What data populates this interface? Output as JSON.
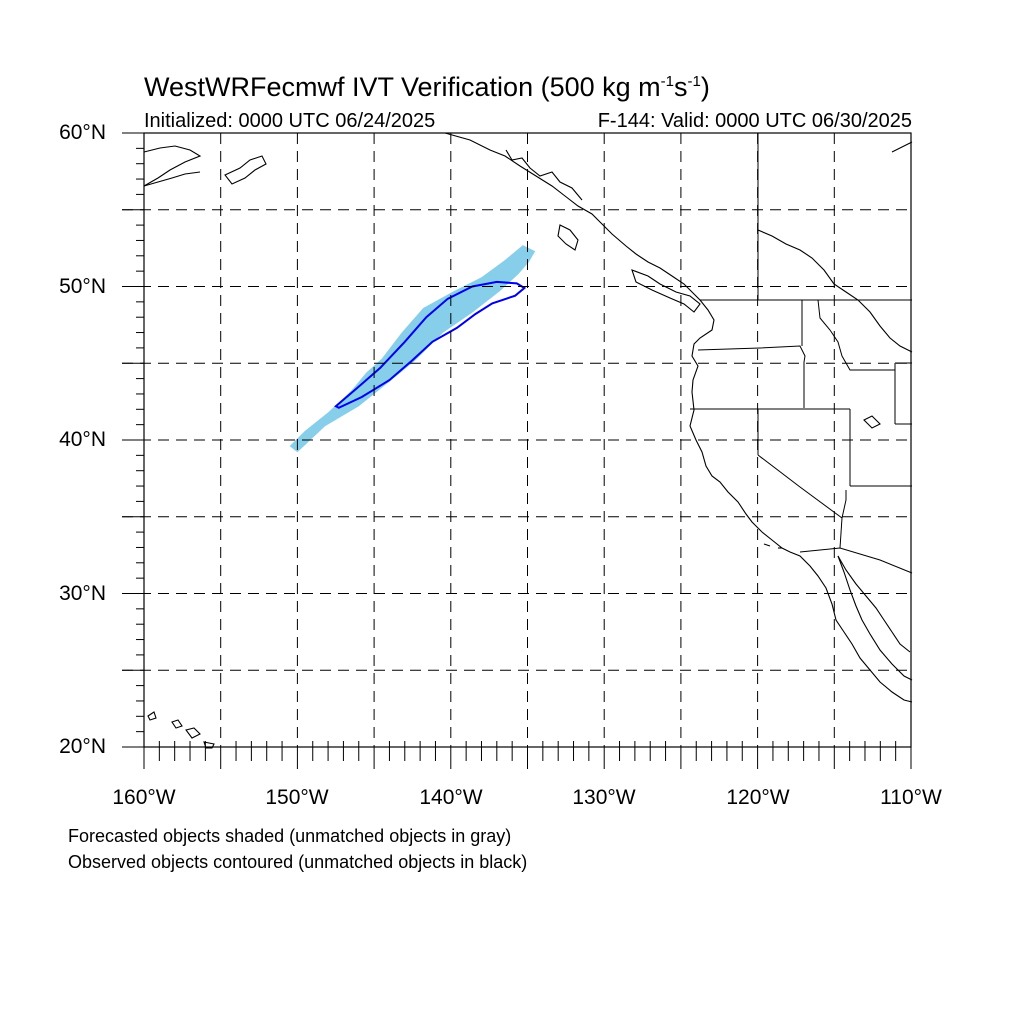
{
  "title": {
    "main": "WestWRFecmwf IVT Verification (500 kg m",
    "sup1": "-1",
    "mid": "s",
    "sup2": "-1",
    "end": ")"
  },
  "initialized": "Initialized: 0000 UTC 06/24/2025",
  "valid": "F-144: Valid: 0000 UTC 06/30/2025",
  "lat_labels": [
    "60°N",
    "50°N",
    "40°N",
    "30°N",
    "20°N"
  ],
  "lon_labels": [
    "160°W",
    "150°W",
    "140°W",
    "130°W",
    "120°W",
    "110°W"
  ],
  "notes": [
    "Forecasted objects shaded (unmatched objects in gray)",
    "Observed objects contoured (unmatched objects in black)"
  ],
  "colors": {
    "forecast_fill": "#87ceeb",
    "observed_contour": "#0000ee",
    "coastline": "#000000",
    "grid": "#000000"
  },
  "map_extent": {
    "lon_min": -160,
    "lon_max": -110,
    "lat_min": 20,
    "lat_max": 60
  },
  "forecast_object": [
    [
      -150.5,
      39.6
    ],
    [
      -149.5,
      40.6
    ],
    [
      -148.0,
      41.8
    ],
    [
      -146.5,
      43.2
    ],
    [
      -145.5,
      44.4
    ],
    [
      -144.5,
      45.3
    ],
    [
      -143.2,
      47.0
    ],
    [
      -141.8,
      48.6
    ],
    [
      -139.8,
      49.7
    ],
    [
      -138.0,
      50.6
    ],
    [
      -136.5,
      51.7
    ],
    [
      -135.3,
      52.7
    ],
    [
      -134.5,
      52.3
    ],
    [
      -134.9,
      51.6
    ],
    [
      -135.6,
      50.8
    ],
    [
      -136.8,
      49.7
    ],
    [
      -138.6,
      48.3
    ],
    [
      -140.5,
      47.0
    ],
    [
      -142.3,
      45.2
    ],
    [
      -144.0,
      43.8
    ],
    [
      -146.0,
      42.2
    ],
    [
      -148.2,
      40.9
    ],
    [
      -150.0,
      39.2
    ]
  ],
  "observed_contour": [
    [
      -147.5,
      42.2
    ],
    [
      -146.2,
      43.3
    ],
    [
      -144.6,
      44.7
    ],
    [
      -143.0,
      46.4
    ],
    [
      -141.6,
      48.0
    ],
    [
      -140.2,
      49.2
    ],
    [
      -138.6,
      50.0
    ],
    [
      -137.0,
      50.3
    ],
    [
      -135.7,
      50.2
    ],
    [
      -135.2,
      49.9
    ],
    [
      -135.8,
      49.4
    ],
    [
      -137.3,
      48.9
    ],
    [
      -138.4,
      48.2
    ],
    [
      -139.6,
      47.3
    ],
    [
      -141.2,
      46.4
    ],
    [
      -142.5,
      45.2
    ],
    [
      -144.0,
      43.9
    ],
    [
      -145.8,
      42.8
    ],
    [
      -147.3,
      42.1
    ]
  ]
}
